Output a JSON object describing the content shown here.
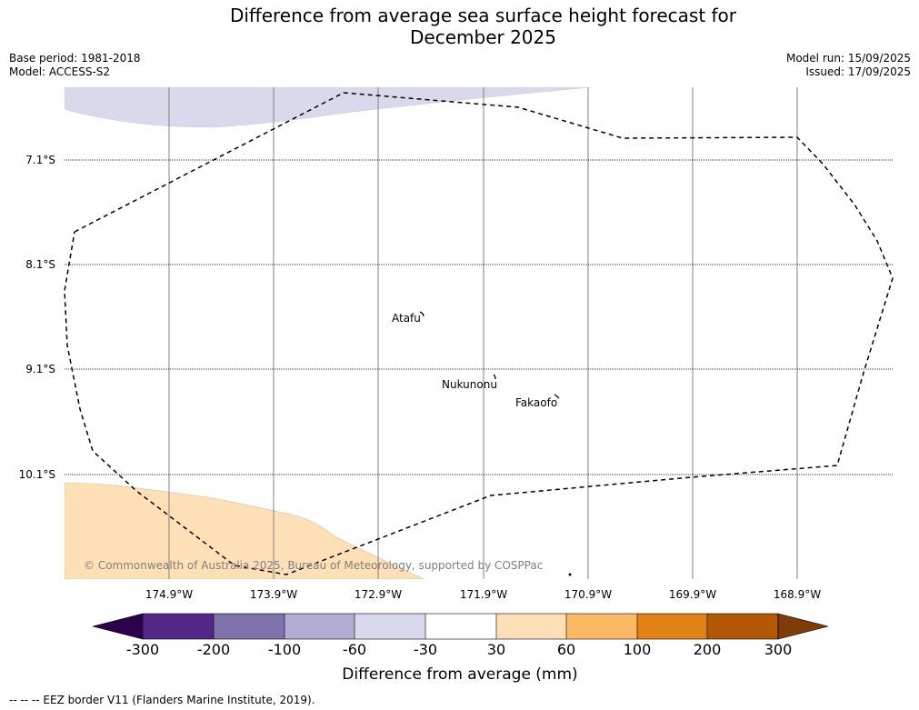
{
  "title_line1": "Difference from average sea surface height forecast for",
  "title_line2": "December 2025",
  "base_period": "Base period: 1981-2018",
  "model": "Model: ACCESS-S2",
  "model_run": "Model run: 15/09/2025",
  "issued": "Issued: 17/09/2025",
  "latitudes": [
    "7.1°S",
    "8.1°S",
    "9.1°S",
    "10.1°S"
  ],
  "longitudes": [
    "174.9°W",
    "173.9°W",
    "172.9°W",
    "171.9°W",
    "170.9°W",
    "169.9°W",
    "168.9°W"
  ],
  "places": {
    "atafu": "Atafu",
    "nukunonu": "Nukunonu",
    "fakaofo": "Fakaofo"
  },
  "copyright": "© Commonwealth of Australia 2025, Bureau of Meteorology, supported by COSPPac",
  "colorbar": {
    "ticks": [
      "-300",
      "-200",
      "-100",
      "-60",
      "-30",
      "30",
      "60",
      "100",
      "200",
      "300"
    ],
    "colors": [
      "#2d004b",
      "#542788",
      "#8073ac",
      "#b2abd2",
      "#d8daeb",
      "#ffffff",
      "#fee0b6",
      "#fdb863",
      "#e08214",
      "#b35806",
      "#7f3b08"
    ],
    "label": "Difference from average (mm)"
  },
  "footer": "--  --  -- EEZ border V11 (Flanders Marine Institute, 2019).",
  "map_regions": {
    "north_purple": {
      "value_range": "-60 to -30 mm",
      "color": "#d8daeb"
    },
    "south_orange": {
      "value_range": "30 to 60 mm",
      "color": "#fee0b6"
    }
  }
}
